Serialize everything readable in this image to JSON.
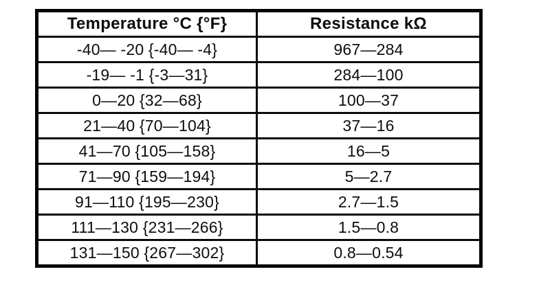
{
  "page": {
    "background": "#ffffff",
    "ink_color": "#0d0d0d",
    "border_color": "#050505"
  },
  "table": {
    "columns": [
      {
        "label": "Temperature °C {°F}"
      },
      {
        "label": "Resistance kΩ"
      }
    ],
    "rows": [
      {
        "temperature": "-40— -20 {-40— -4}",
        "resistance": "967—284"
      },
      {
        "temperature": "-19— -1 {-3—31}",
        "resistance": "284—100"
      },
      {
        "temperature": "0—20 {32—68}",
        "resistance": "100—37"
      },
      {
        "temperature": "21—40 {70—104}",
        "resistance": "37—16"
      },
      {
        "temperature": "41—70 {105—158}",
        "resistance": "16—5"
      },
      {
        "temperature": "71—90 {159—194}",
        "resistance": "5—2.7"
      },
      {
        "temperature": "91—110 {195—230}",
        "resistance": "2.7—1.5"
      },
      {
        "temperature": "111—130 {231—266}",
        "resistance": "1.5—0.8"
      },
      {
        "temperature": "131—150 {267—302}",
        "resistance": "0.8—0.54"
      }
    ]
  }
}
